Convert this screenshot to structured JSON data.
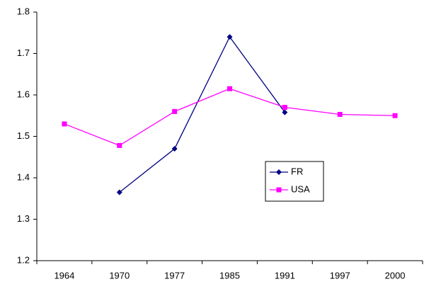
{
  "chart_data": {
    "type": "line",
    "categories": [
      "1964",
      "1970",
      "1977",
      "1985",
      "1991",
      "1997",
      "2000"
    ],
    "series": [
      {
        "name": "FR",
        "color": "#000080",
        "marker": "diamond",
        "values": [
          null,
          1.365,
          1.47,
          1.74,
          1.558,
          null,
          null
        ]
      },
      {
        "name": "USA",
        "color": "#ff00ff",
        "marker": "square",
        "values": [
          1.53,
          1.478,
          1.56,
          1.615,
          1.57,
          1.553,
          1.55
        ]
      }
    ],
    "ylim": [
      1.2,
      1.8
    ],
    "yticks": [
      1.2,
      1.3,
      1.4,
      1.5,
      1.6,
      1.7,
      1.8
    ],
    "grid": false,
    "legend": "center"
  }
}
